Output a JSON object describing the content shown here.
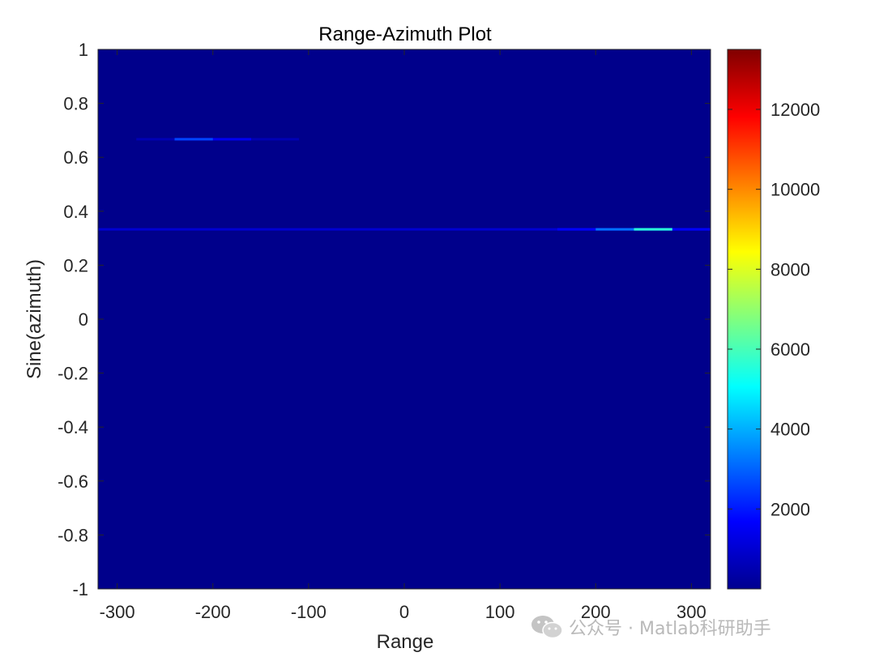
{
  "chart_data": {
    "type": "heatmap",
    "title": "Range-Azimuth Plot",
    "xlabel": "Range",
    "ylabel": "Sine(azimuth)",
    "xlim": [
      -320,
      320
    ],
    "ylim": [
      -1,
      1
    ],
    "x_ticks": [
      -300,
      -200,
      -100,
      0,
      100,
      200,
      300
    ],
    "y_ticks": [
      1,
      0.8,
      0.6,
      0.4,
      0.2,
      0,
      -0.2,
      -0.4,
      -0.6,
      -0.8,
      -1
    ],
    "colormap": "jet",
    "color_range": [
      0,
      13500
    ],
    "colorbar_ticks": [
      2000,
      4000,
      6000,
      8000,
      10000,
      12000
    ],
    "background_value": 150,
    "features": [
      {
        "y": 0.667,
        "x_start": -280,
        "x_end": -110,
        "value": 700
      },
      {
        "y": 0.667,
        "x_start": -240,
        "x_end": -160,
        "value": 1500
      },
      {
        "y": 0.667,
        "x_start": -240,
        "x_end": -200,
        "value": 2600
      },
      {
        "y": 0.333,
        "x_start": -320,
        "x_end": 320,
        "value": 1100
      },
      {
        "y": 0.333,
        "x_start": 160,
        "x_end": 320,
        "value": 1700
      },
      {
        "y": 0.333,
        "x_start": 200,
        "x_end": 280,
        "value": 3200
      },
      {
        "y": 0.333,
        "x_start": 240,
        "x_end": 280,
        "value": 5600
      }
    ]
  },
  "watermark": {
    "text": "公众号 · Matlab科研助手",
    "icon": "wechat-icon"
  }
}
